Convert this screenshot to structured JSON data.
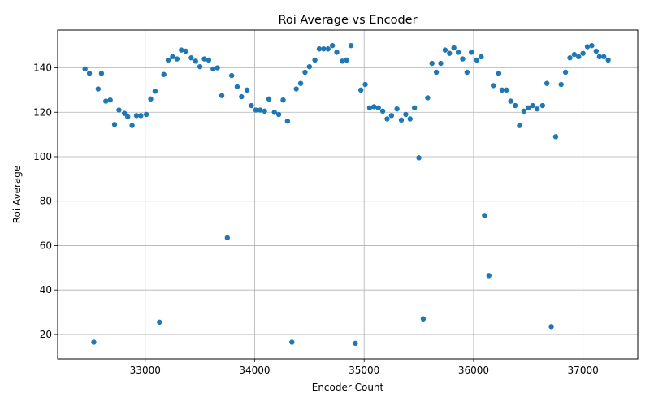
{
  "chart_data": {
    "type": "scatter",
    "title": "Roi Average vs Encoder",
    "xlabel": "Encoder Count",
    "ylabel": "Roi Average",
    "xlim": [
      32200,
      37500
    ],
    "ylim": [
      9,
      157
    ],
    "xticks": [
      33000,
      34000,
      35000,
      36000,
      37000
    ],
    "yticks": [
      20,
      40,
      60,
      80,
      100,
      120,
      140
    ],
    "grid": true,
    "marker_color": "#1f77b4",
    "points": [
      [
        32450,
        139.5
      ],
      [
        32490,
        137.5
      ],
      [
        32530,
        16.5
      ],
      [
        32570,
        130.5
      ],
      [
        32600,
        137.5
      ],
      [
        32640,
        125
      ],
      [
        32680,
        125.5
      ],
      [
        32720,
        114.5
      ],
      [
        32760,
        121
      ],
      [
        32810,
        119.5
      ],
      [
        32840,
        118
      ],
      [
        32880,
        114
      ],
      [
        32920,
        118.5
      ],
      [
        32960,
        118.5
      ],
      [
        33010,
        119
      ],
      [
        33050,
        126
      ],
      [
        33090,
        129.5
      ],
      [
        33130,
        25.5
      ],
      [
        33170,
        137
      ],
      [
        33210,
        143.5
      ],
      [
        33250,
        145
      ],
      [
        33290,
        144
      ],
      [
        33330,
        148
      ],
      [
        33370,
        147.5
      ],
      [
        33420,
        144.5
      ],
      [
        33460,
        143
      ],
      [
        33500,
        140.5
      ],
      [
        33540,
        144
      ],
      [
        33580,
        143.5
      ],
      [
        33620,
        139.5
      ],
      [
        33660,
        140
      ],
      [
        33700,
        127.5
      ],
      [
        33750,
        63.5
      ],
      [
        33790,
        136.5
      ],
      [
        33840,
        131.5
      ],
      [
        33880,
        127
      ],
      [
        33930,
        130
      ],
      [
        33970,
        123
      ],
      [
        34010,
        121
      ],
      [
        34050,
        121
      ],
      [
        34090,
        120.5
      ],
      [
        34130,
        126
      ],
      [
        34180,
        120
      ],
      [
        34220,
        119
      ],
      [
        34260,
        125.5
      ],
      [
        34300,
        116
      ],
      [
        34340,
        16.5
      ],
      [
        34380,
        130.5
      ],
      [
        34420,
        133
      ],
      [
        34460,
        138
      ],
      [
        34500,
        140.5
      ],
      [
        34550,
        143.5
      ],
      [
        34590,
        148.5
      ],
      [
        34630,
        148.5
      ],
      [
        34670,
        148.5
      ],
      [
        34710,
        150
      ],
      [
        34750,
        147
      ],
      [
        34800,
        143
      ],
      [
        34840,
        143.5
      ],
      [
        34880,
        150
      ],
      [
        34920,
        16
      ],
      [
        34970,
        130
      ],
      [
        35010,
        132.5
      ],
      [
        35050,
        122
      ],
      [
        35090,
        122.5
      ],
      [
        35130,
        122
      ],
      [
        35170,
        120.5
      ],
      [
        35210,
        117
      ],
      [
        35250,
        118.5
      ],
      [
        35300,
        121.5
      ],
      [
        35340,
        116.5
      ],
      [
        35380,
        119
      ],
      [
        35420,
        117
      ],
      [
        35460,
        122
      ],
      [
        35500,
        99.5
      ],
      [
        35540,
        27
      ],
      [
        35580,
        126.5
      ],
      [
        35620,
        142
      ],
      [
        35660,
        138
      ],
      [
        35700,
        142
      ],
      [
        35740,
        148
      ],
      [
        35780,
        146.5
      ],
      [
        35820,
        149
      ],
      [
        35860,
        147
      ],
      [
        35900,
        144
      ],
      [
        35940,
        138
      ],
      [
        35980,
        147
      ],
      [
        36030,
        143.5
      ],
      [
        36070,
        145
      ],
      [
        36100,
        73.5
      ],
      [
        36140,
        46.5
      ],
      [
        36180,
        132
      ],
      [
        36230,
        137.5
      ],
      [
        36260,
        130
      ],
      [
        36300,
        130
      ],
      [
        36340,
        125
      ],
      [
        36380,
        123
      ],
      [
        36420,
        114
      ],
      [
        36460,
        120.5
      ],
      [
        36500,
        122
      ],
      [
        36540,
        123
      ],
      [
        36580,
        121.5
      ],
      [
        36630,
        123
      ],
      [
        36670,
        133
      ],
      [
        36710,
        23.5
      ],
      [
        36750,
        109
      ],
      [
        36800,
        132.5
      ],
      [
        36840,
        138
      ],
      [
        36880,
        144.5
      ],
      [
        36920,
        146
      ],
      [
        36960,
        145
      ],
      [
        37000,
        146.5
      ],
      [
        37040,
        149.5
      ],
      [
        37080,
        150
      ],
      [
        37120,
        147.5
      ],
      [
        37150,
        145
      ],
      [
        37190,
        145
      ],
      [
        37230,
        143.5
      ]
    ]
  }
}
